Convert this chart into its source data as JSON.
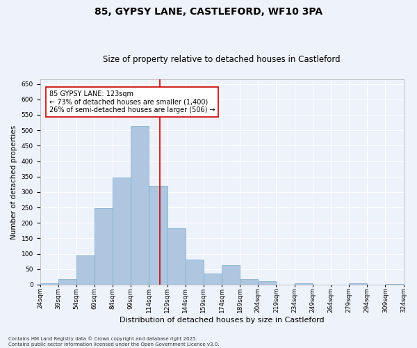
{
  "title": "85, GYPSY LANE, CASTLEFORD, WF10 3PA",
  "subtitle": "Size of property relative to detached houses in Castleford",
  "xlabel": "Distribution of detached houses by size in Castleford",
  "ylabel": "Number of detached properties",
  "categories": [
    "24sqm",
    "39sqm",
    "54sqm",
    "69sqm",
    "84sqm",
    "99sqm",
    "114sqm",
    "129sqm",
    "144sqm",
    "159sqm",
    "174sqm",
    "189sqm",
    "204sqm",
    "219sqm",
    "234sqm",
    "249sqm",
    "264sqm",
    "279sqm",
    "294sqm",
    "309sqm",
    "324sqm"
  ],
  "values": [
    5,
    17,
    95,
    248,
    347,
    515,
    320,
    183,
    80,
    36,
    63,
    18,
    11,
    0,
    4,
    0,
    0,
    5,
    0,
    2,
    0
  ],
  "bar_color": "#aec6e0",
  "bar_edge_color": "#7aaaca",
  "vline_color": "#cc0000",
  "annotation_text": "85 GYPSY LANE: 123sqm\n← 73% of detached houses are smaller (1,400)\n26% of semi-detached houses are larger (506) →",
  "annotation_box_color": "#ffffff",
  "annotation_box_edge": "#cc0000",
  "ylim": [
    0,
    665
  ],
  "yticks": [
    0,
    50,
    100,
    150,
    200,
    250,
    300,
    350,
    400,
    450,
    500,
    550,
    600,
    650
  ],
  "background_color": "#eef2fb",
  "grid_color": "#ffffff",
  "footer": "Contains HM Land Registry data © Crown copyright and database right 2025.\nContains public sector information licensed under the Open Government Licence v3.0.",
  "title_fontsize": 10,
  "subtitle_fontsize": 8.5,
  "xlabel_fontsize": 8,
  "ylabel_fontsize": 7.5,
  "tick_fontsize": 6.5,
  "annotation_fontsize": 7,
  "footer_fontsize": 5
}
